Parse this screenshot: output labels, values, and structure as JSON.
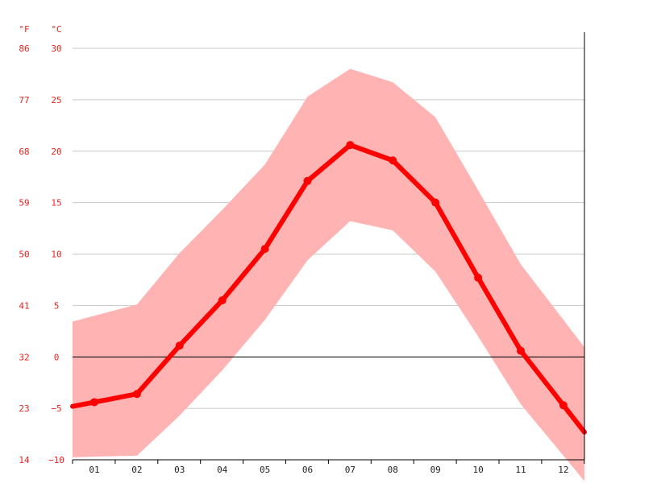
{
  "chart_data": {
    "type": "line",
    "title": "",
    "xlabel": "",
    "ylabel": "",
    "units": {
      "fahrenheit": "°F",
      "celsius": "°C"
    },
    "categories": [
      "01",
      "02",
      "03",
      "04",
      "05",
      "06",
      "07",
      "08",
      "09",
      "10",
      "11",
      "12"
    ],
    "ylim": [
      -10,
      30
    ],
    "y_ticks_c": [
      "30",
      "25",
      "20",
      "15",
      "10",
      "5",
      "0",
      "−5",
      "−10"
    ],
    "y_ticks_c_values": [
      30,
      25,
      20,
      15,
      10,
      5,
      0,
      -5,
      -10
    ],
    "y_ticks_f": [
      "86",
      "77",
      "68",
      "59",
      "50",
      "41",
      "32",
      "23",
      "14"
    ],
    "grid": true,
    "zero_line": true,
    "series": [
      {
        "values": [
          -4.4,
          -3.6,
          1.1,
          5.5,
          10.5,
          17.1,
          20.6,
          19.1,
          15.0,
          7.7,
          0.6,
          -4.7
        ]
      }
    ],
    "band": {
      "upper": [
        4.0,
        5.1,
        10.1,
        14.3,
        18.7,
        25.3,
        28.0,
        26.7,
        23.3,
        16.2,
        9.0,
        3.6
      ],
      "lower": [
        -9.7,
        -9.6,
        -5.7,
        -1.3,
        3.6,
        9.4,
        13.2,
        12.3,
        8.3,
        2.0,
        -4.6,
        -9.6
      ]
    },
    "colors": {
      "line": "#ff0000",
      "band": "#ffb3b3",
      "grid": "#c8c8c8",
      "axis_text": "#e8231f"
    }
  }
}
